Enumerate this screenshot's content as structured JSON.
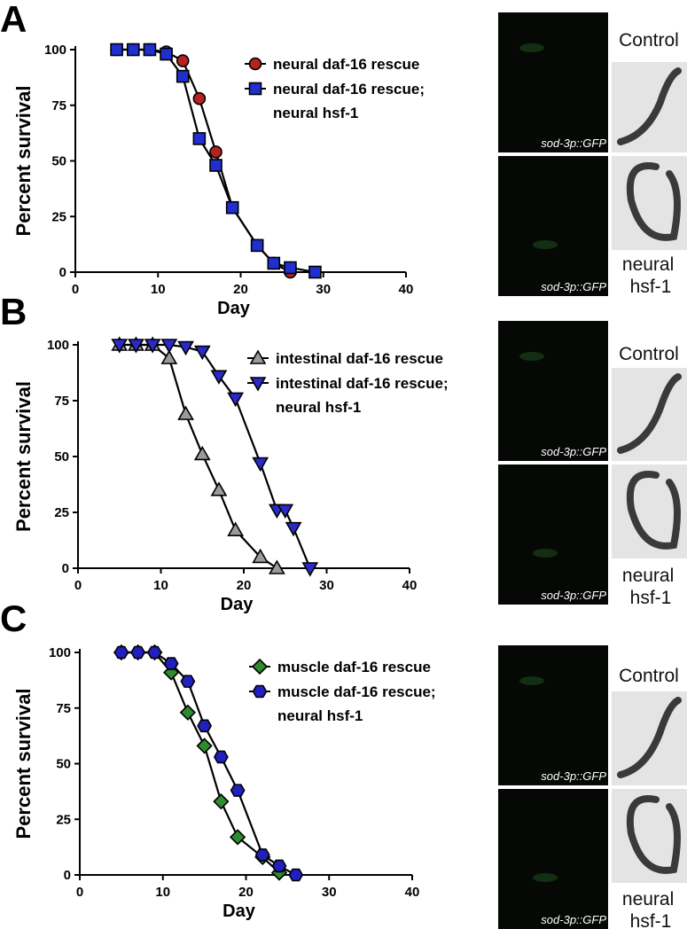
{
  "panels": [
    {
      "letter": "A",
      "control": "Control",
      "mutant": "neural hsf-1",
      "gfp": [
        "sod-3p::GFP",
        "sod-3p::GFP"
      ]
    },
    {
      "letter": "B",
      "control": "Control",
      "mutant": "neural hsf-1",
      "gfp": [
        "sod-3p::GFP",
        "sod-3p::GFP"
      ]
    },
    {
      "letter": "C",
      "control": "Control",
      "mutant": "neural hsf-1",
      "gfp": [
        "sod-3p::GFP",
        "sod-3p::GFP"
      ]
    }
  ],
  "chart_data": [
    {
      "type": "line",
      "x_label": "Day",
      "y_label": "Percent survival",
      "xlim": [
        0,
        40
      ],
      "xticks": [
        0,
        10,
        20,
        30,
        40
      ],
      "ylim": [
        0,
        100
      ],
      "yticks": [
        0,
        25,
        50,
        75,
        100
      ],
      "series": [
        {
          "name": "neural daf-16 rescue",
          "color": "#b5221f",
          "marker": "circle",
          "x": [
            5,
            7,
            9,
            11,
            13,
            15,
            17,
            19,
            22,
            24,
            26
          ],
          "values": [
            100,
            100,
            100,
            99,
            95,
            78,
            54,
            29,
            12,
            4,
            0
          ]
        },
        {
          "name": "neural daf-16 rescue; neural hsf-1",
          "color": "#1f2fd0",
          "marker": "square",
          "x": [
            5,
            7,
            9,
            11,
            13,
            15,
            17,
            19,
            22,
            24,
            26,
            29
          ],
          "values": [
            100,
            100,
            100,
            98,
            88,
            60,
            48,
            29,
            12,
            4,
            2,
            0
          ]
        }
      ]
    },
    {
      "type": "line",
      "x_label": "Day",
      "y_label": "Percent survival",
      "xlim": [
        0,
        40
      ],
      "xticks": [
        0,
        10,
        20,
        30,
        40
      ],
      "ylim": [
        0,
        100
      ],
      "yticks": [
        0,
        25,
        50,
        75,
        100
      ],
      "series": [
        {
          "name": "intestinal daf-16 rescue",
          "color": "#9a9a9a",
          "marker": "triangle-up",
          "x": [
            5,
            7,
            9,
            11,
            13,
            15,
            17,
            19,
            22,
            24
          ],
          "values": [
            100,
            100,
            100,
            94,
            69,
            51,
            35,
            17,
            5,
            0
          ]
        },
        {
          "name": "intestinal daf-16 rescue; neural hsf-1",
          "color": "#2a2ac8",
          "marker": "triangle-down",
          "x": [
            5,
            7,
            9,
            11,
            13,
            15,
            17,
            19,
            22,
            24,
            25,
            26,
            28
          ],
          "values": [
            100,
            100,
            100,
            100,
            99,
            97,
            86,
            76,
            47,
            26,
            26,
            18,
            0
          ]
        }
      ]
    },
    {
      "type": "line",
      "x_label": "Day",
      "y_label": "Percent survival",
      "xlim": [
        0,
        40
      ],
      "xticks": [
        0,
        10,
        20,
        30,
        40
      ],
      "ylim": [
        0,
        100
      ],
      "yticks": [
        0,
        25,
        50,
        75,
        100
      ],
      "series": [
        {
          "name": "muscle daf-16 rescue",
          "color": "#2e8b2e",
          "marker": "diamond",
          "x": [
            5,
            7,
            9,
            11,
            13,
            15,
            17,
            19,
            22,
            24
          ],
          "values": [
            100,
            100,
            100,
            91,
            73,
            58,
            33,
            17,
            8,
            1
          ]
        },
        {
          "name": "muscle daf-16 rescue; neural hsf-1",
          "color": "#2020c0",
          "marker": "hexagon",
          "x": [
            5,
            7,
            9,
            11,
            13,
            15,
            17,
            19,
            22,
            24,
            26
          ],
          "values": [
            100,
            100,
            100,
            95,
            87,
            67,
            53,
            38,
            9,
            4,
            0
          ]
        }
      ]
    }
  ]
}
